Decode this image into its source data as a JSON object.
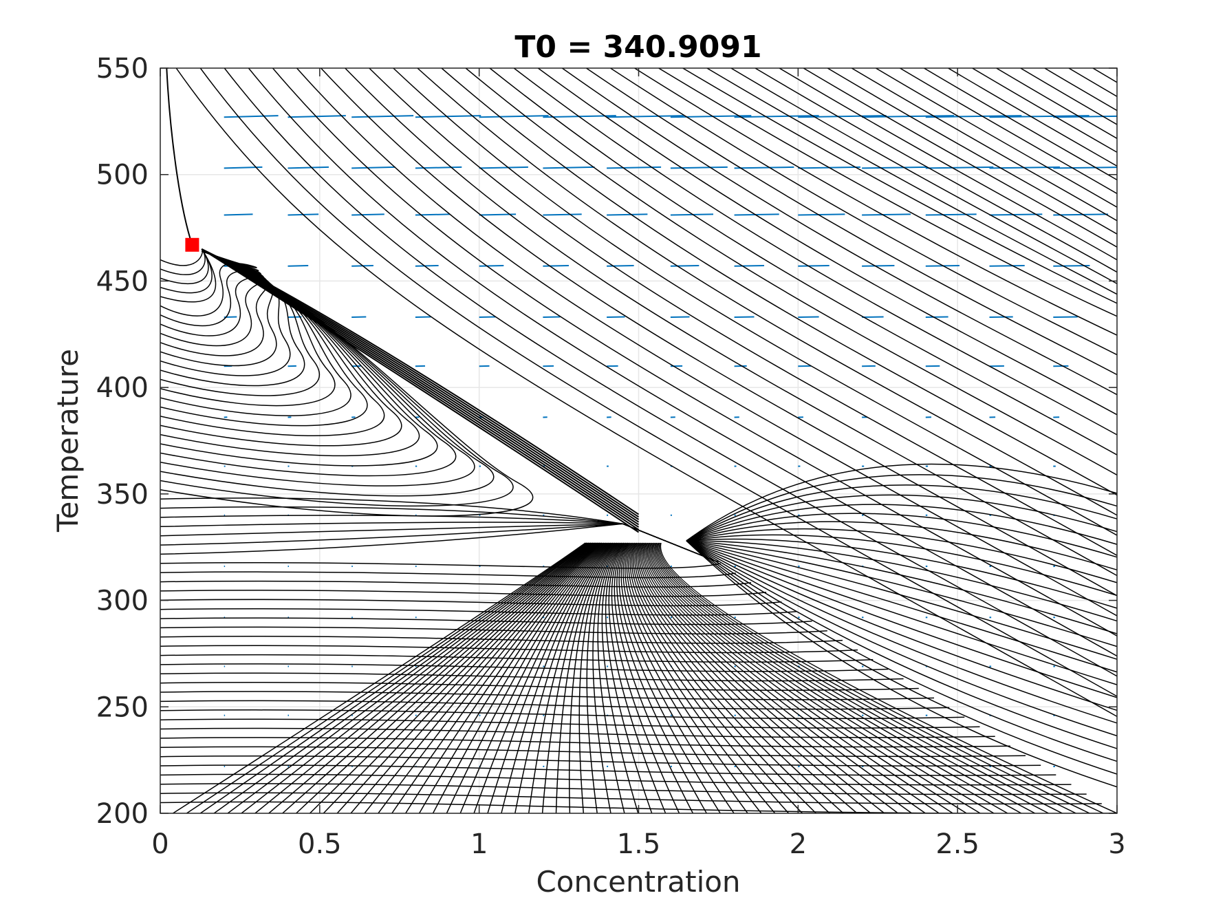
{
  "chart_data": {
    "type": "line",
    "title": "T0 = 340.9091",
    "xlabel": "Concentration",
    "ylabel": "Temperature",
    "xlim": [
      0,
      3
    ],
    "ylim": [
      200,
      550
    ],
    "xticks": [
      0,
      0.5,
      1,
      1.5,
      2,
      2.5,
      3
    ],
    "xtick_labels": [
      "0",
      "0.5",
      "1",
      "1.5",
      "2",
      "2.5",
      "3"
    ],
    "yticks": [
      200,
      250,
      300,
      350,
      400,
      450,
      500,
      550
    ],
    "ytick_labels": [
      "200",
      "250",
      "300",
      "350",
      "400",
      "450",
      "500",
      "550"
    ],
    "grid": true,
    "equilibrium_point": {
      "x": 0.1,
      "y": 467,
      "color": "#ff0000",
      "marker": "square"
    },
    "saddle_point": {
      "x": 1.45,
      "y": 336
    },
    "stable_manifold_top": {
      "x": 0.02,
      "y": 550
    },
    "unstable_manifold_end": {
      "x": 1.75,
      "y": 318
    },
    "trajectory_colors": {
      "trajectories": "#000000",
      "quiver": "#0072bd"
    },
    "trajectory_counts": {
      "left_edge_starts": 60,
      "bottom_edge_starts": 70,
      "top_edge_starts": 40
    }
  }
}
